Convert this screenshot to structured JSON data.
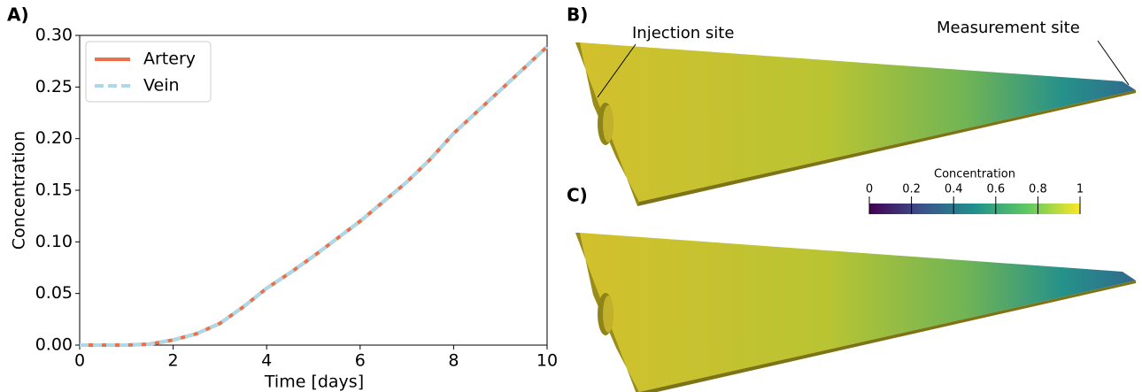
{
  "chart_data": {
    "type": "line",
    "x": [
      0,
      0.5,
      1,
      1.5,
      2,
      2.5,
      3,
      3.5,
      4,
      4.5,
      5,
      5.5,
      6,
      6.5,
      7,
      7.5,
      8,
      8.5,
      9,
      9.5,
      10
    ],
    "series": [
      {
        "name": "Artery",
        "color": "#e8704a",
        "values": [
          0,
          0,
          0,
          0.001,
          0.005,
          0.011,
          0.021,
          0.037,
          0.055,
          0.07,
          0.086,
          0.103,
          0.12,
          0.139,
          0.158,
          0.18,
          0.205,
          0.226,
          0.247,
          0.268,
          0.289
        ]
      },
      {
        "name": "Vein",
        "color": "#add8e6",
        "values": [
          0,
          0,
          0,
          0.001,
          0.005,
          0.011,
          0.021,
          0.037,
          0.055,
          0.07,
          0.086,
          0.103,
          0.12,
          0.139,
          0.158,
          0.18,
          0.205,
          0.226,
          0.247,
          0.268,
          0.289
        ]
      }
    ],
    "x_label": "Time [days]",
    "y_label": "Concentration",
    "xlim": [
      0,
      10
    ],
    "ylim": [
      0,
      0.3
    ],
    "xticks": [
      0,
      2,
      4,
      6,
      8,
      10
    ],
    "yticks": [
      {
        "value": 0,
        "label": "0.00"
      },
      {
        "value": 0.05,
        "label": "0.05"
      },
      {
        "value": 0.1,
        "label": "0.10"
      },
      {
        "value": 0.15,
        "label": "0.15"
      },
      {
        "value": 0.2,
        "label": "0.20"
      },
      {
        "value": 0.25,
        "label": "0.25"
      },
      {
        "value": 0.3,
        "label": "0.30"
      }
    ],
    "legend": "upper left"
  },
  "panel_labels": [
    "A)",
    "B)",
    "C)"
  ],
  "annotations": {
    "injection": "Injection site",
    "measurement": "Measurement site"
  },
  "colorbar": {
    "title": "Concentration",
    "range": [
      0,
      1
    ],
    "ticks": [
      0,
      0.2,
      0.4,
      0.6,
      0.8,
      1
    ]
  }
}
